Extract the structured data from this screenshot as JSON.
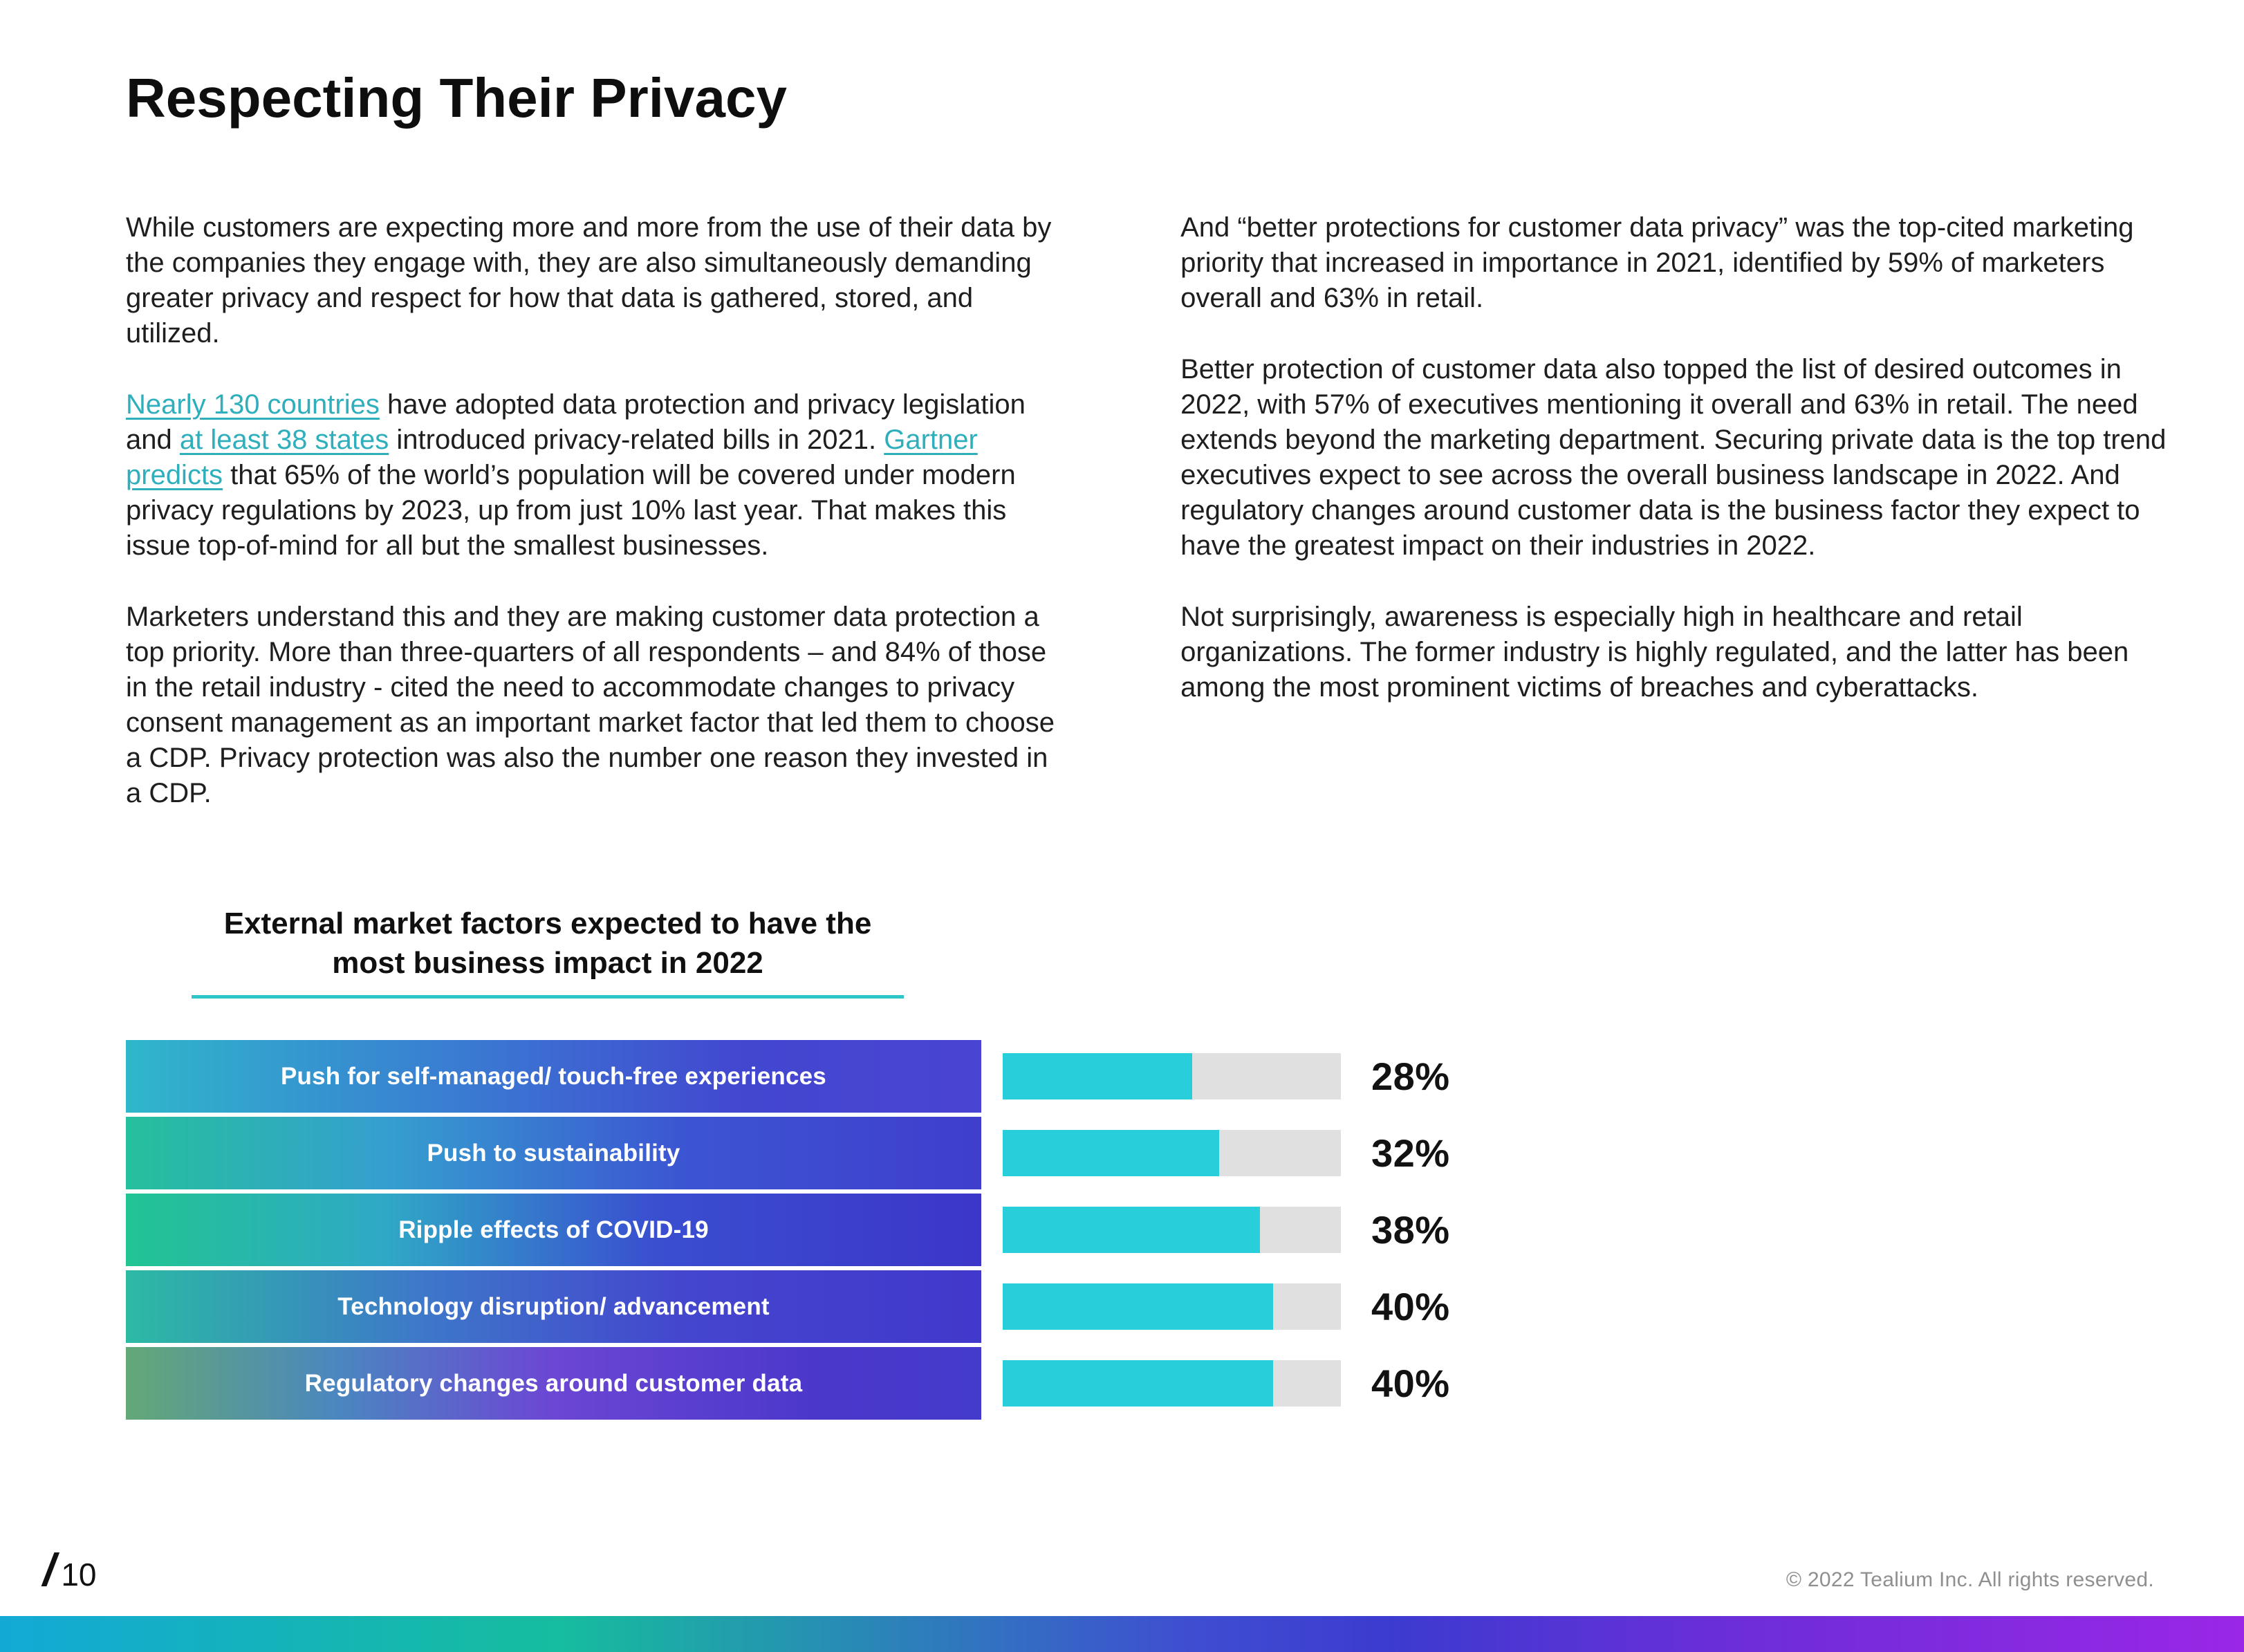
{
  "page": {
    "title": "Respecting Their Privacy",
    "page_slash": "/",
    "page_number": "10",
    "copyright": "© 2022 Tealium Inc. All rights reserved."
  },
  "left_column": {
    "p1": "While customers are expecting more and more from the use of their data by the companies they engage with, they are also simultaneously demanding greater privacy and respect for how that data is gathered, stored, and utilized.",
    "p2_segments": [
      {
        "text": "Nearly 130 countries",
        "link": true
      },
      {
        "text": " have adopted data protection and privacy legislation and ",
        "link": false
      },
      {
        "text": "at least 38 states",
        "link": true
      },
      {
        "text": " introduced privacy-related bills in 2021. ",
        "link": false
      },
      {
        "text": "Gartner predicts",
        "link": true
      },
      {
        "text": " that 65% of the world’s population will be covered under modern privacy regulations by 2023, up from just 10% last year. That makes this issue top-of-mind for all but the smallest businesses.",
        "link": false
      }
    ],
    "p3": "Marketers understand this and they are making customer data protection a top priority. More than three-quarters of all respondents – and 84% of those in the retail industry - cited the need to accommodate changes to privacy consent management as an important market factor that led them to choose a CDP. Privacy protection was also the number one reason they invested in a CDP."
  },
  "right_column": {
    "p1": "And “better protections for customer data privacy” was the top-cited marketing priority that increased in importance in 2021, identified by 59% of marketers overall and 63% in retail.",
    "p2": "Better protection of customer data also topped the list of desired outcomes in 2022, with 57% of executives mentioning it overall and 63% in retail. The need extends beyond the marketing department. Securing private data is the top trend executives expect to see across the overall business landscape in 2022. And regulatory changes around customer data is the business factor they expect to have the greatest impact on their industries in 2022.",
    "p3": "Not surprisingly, awareness is especially high in healthcare and retail organizations. The former industry is highly regulated, and the latter has been among the most prominent victims of breaches and cyberattacks."
  },
  "chart_data": {
    "type": "bar",
    "orientation": "horizontal",
    "title": "External market factors expected to have the most business impact in 2022",
    "categories": [
      "Push for self-managed/ touch-free experiences",
      "Push to sustainability",
      "Ripple effects of COVID-19",
      "Technology disruption/ advancement",
      "Regulatory changes around customer data"
    ],
    "values": [
      28,
      32,
      38,
      40,
      40
    ],
    "value_labels": [
      "28%",
      "32%",
      "38%",
      "40%",
      "40%"
    ],
    "unit": "%",
    "track_scale_max": 50,
    "legend": "none",
    "grid": false,
    "colors": {
      "fill": "#28ced9",
      "track": "#e0e0e0",
      "title_underline": "#2ec6ca",
      "link": "#2fafbc",
      "value_text": "#121212",
      "label_text": "#ffffff"
    }
  }
}
